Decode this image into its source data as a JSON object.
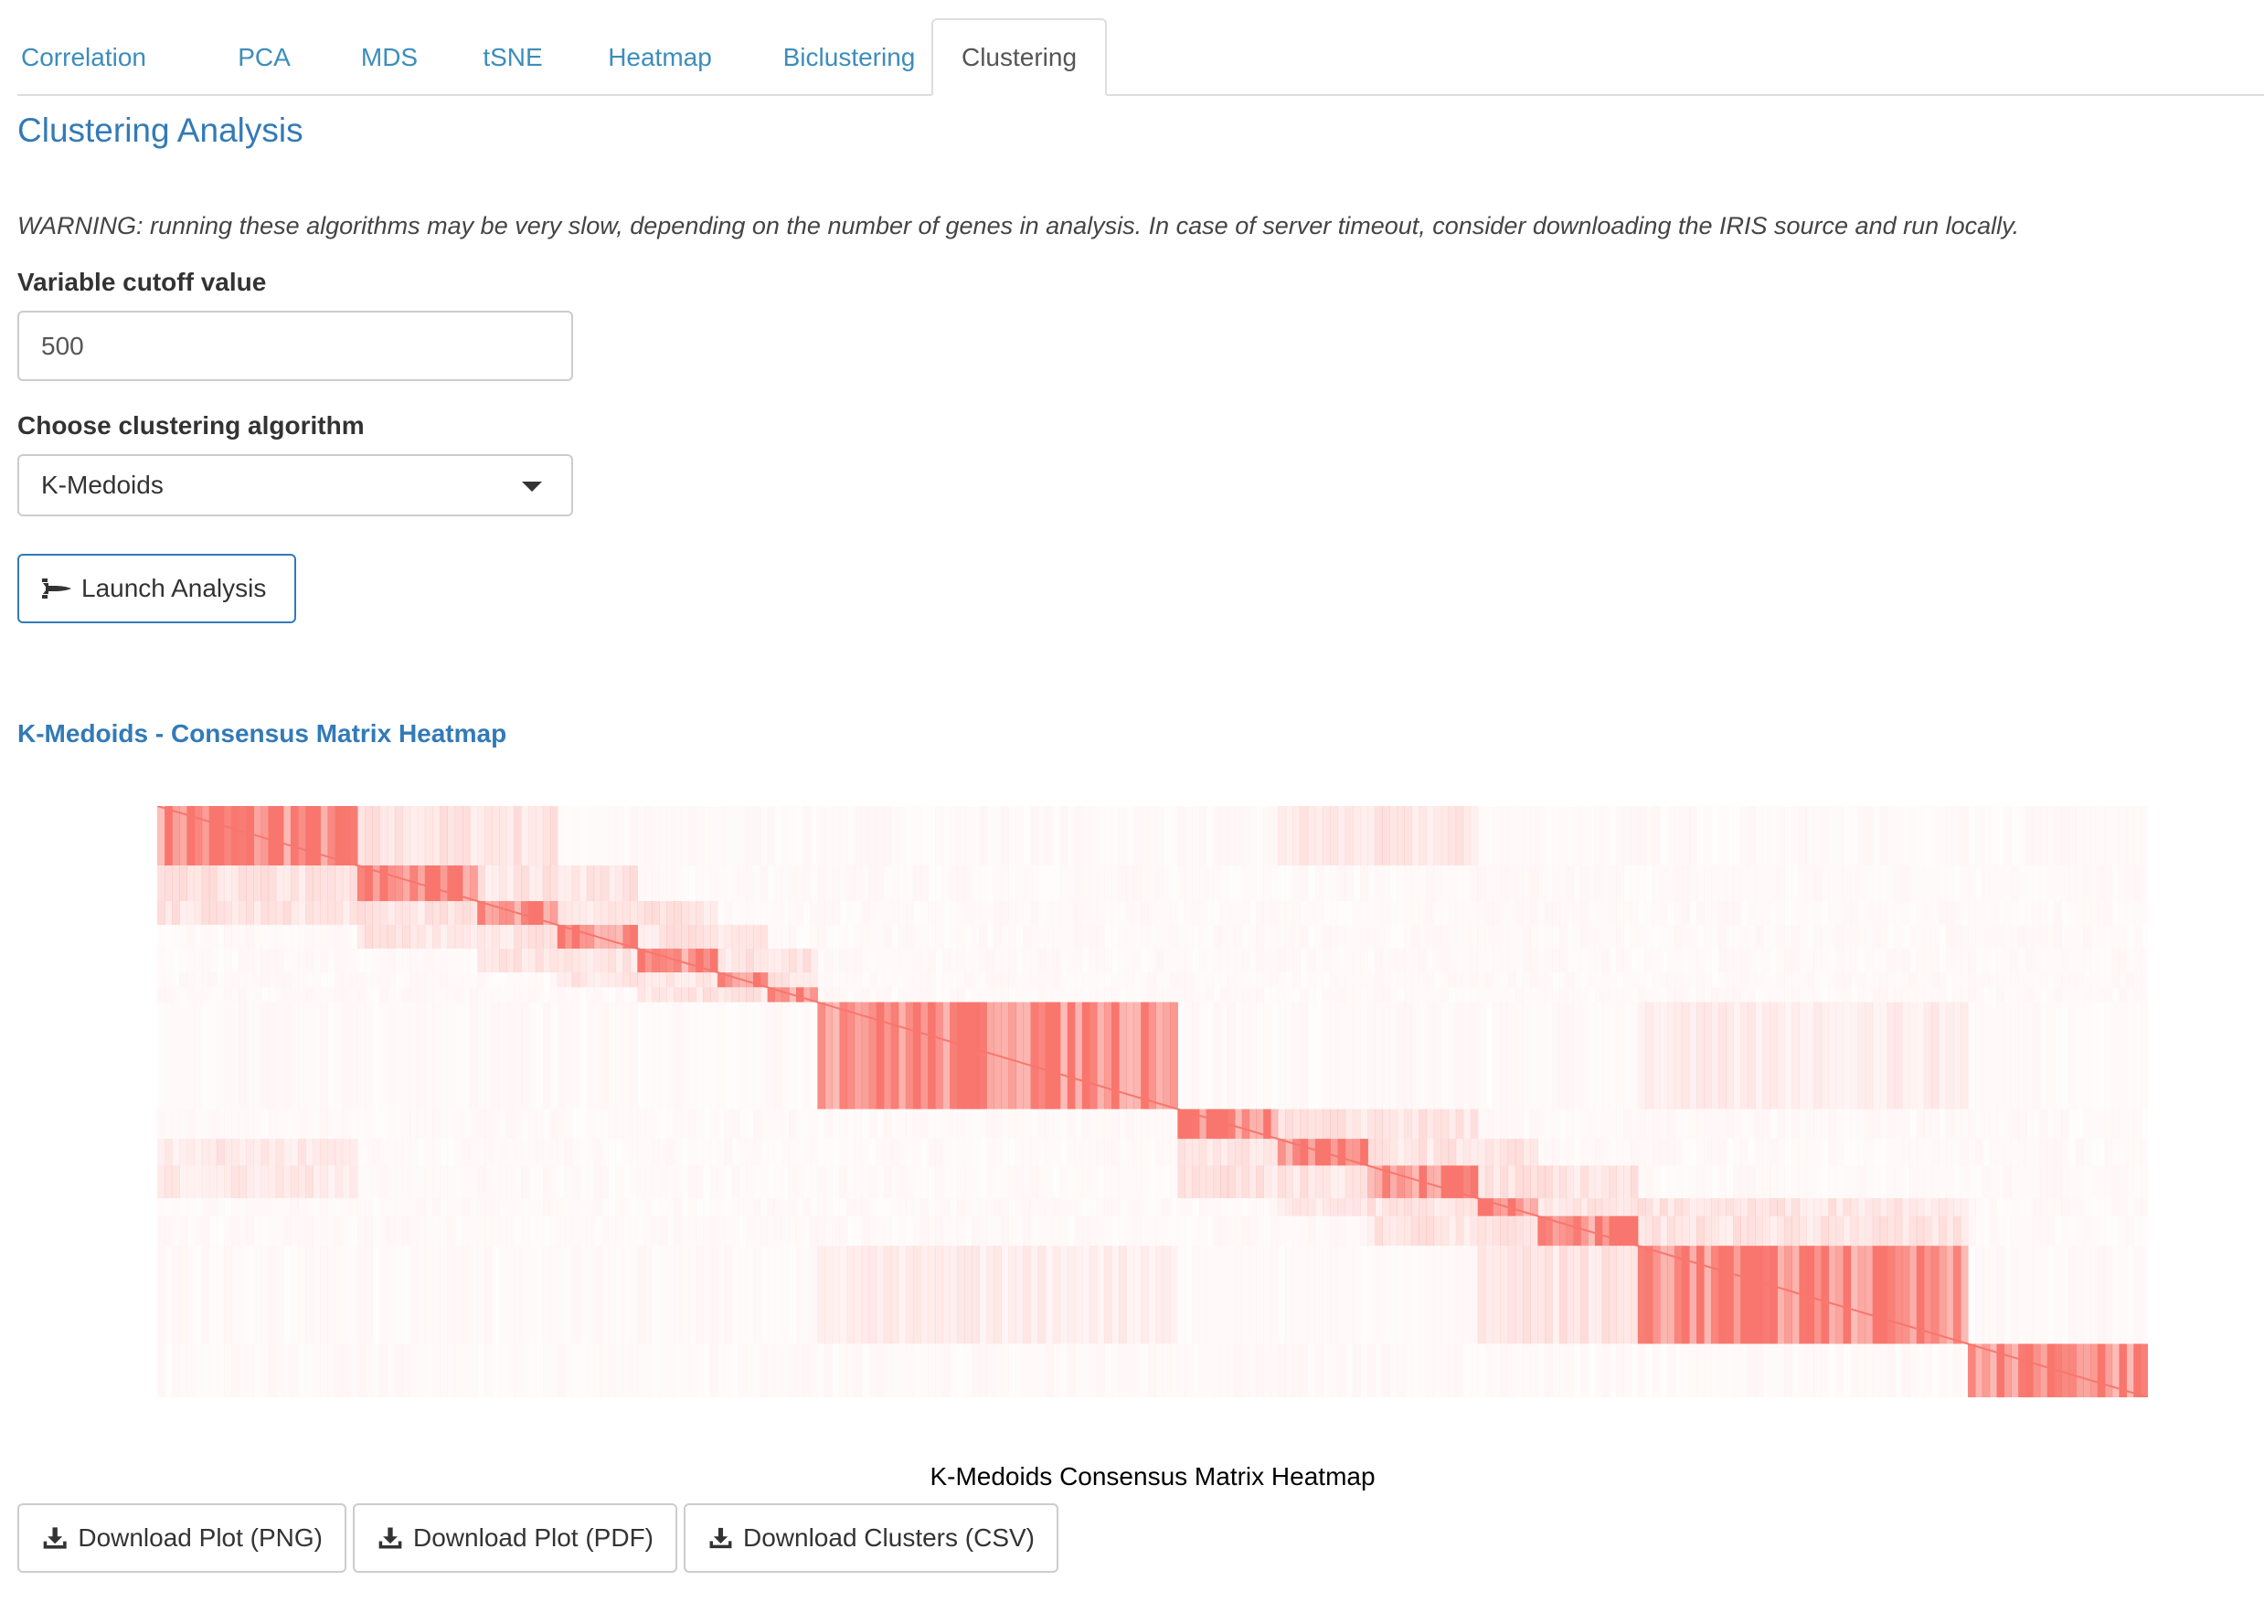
{
  "tabs": [
    {
      "label": "Correlation",
      "active": false
    },
    {
      "label": "PCA",
      "active": false
    },
    {
      "label": "MDS",
      "active": false
    },
    {
      "label": "tSNE",
      "active": false
    },
    {
      "label": "Heatmap",
      "active": false
    },
    {
      "label": "Biclustering",
      "active": false
    },
    {
      "label": "Clustering",
      "active": true
    }
  ],
  "page": {
    "title": "Clustering Analysis",
    "warning": "WARNING: running these algorithms may be very slow, depending on the number of genes in analysis. In case of server timeout, consider downloading the IRIS source and run locally."
  },
  "form": {
    "cutoff_label": "Variable cutoff value",
    "cutoff_value": "500",
    "algorithm_label": "Choose clustering algorithm",
    "algorithm_value": "K-Medoids",
    "launch_label": "Launch Analysis"
  },
  "result": {
    "section_title": "K-Medoids - Consensus Matrix Heatmap",
    "caption": "K-Medoids Consensus Matrix Heatmap"
  },
  "downloads": {
    "png_label": "Download Plot (PNG)",
    "pdf_label": "Download Plot (PDF)",
    "csv_label": "Download Clusters (CSV)"
  },
  "icons": {
    "launch": "space-shuttle-icon",
    "download": "download-icon"
  },
  "colors": {
    "accent": "#337ab7",
    "link": "#3c8dbc",
    "heat": "#f8766d"
  },
  "chart_data": {
    "type": "heatmap",
    "title": "K-Medoids Consensus Matrix Heatmap",
    "value_range": [
      0,
      1
    ],
    "high_color": "#f8766d",
    "low_color": "#ffffff",
    "clusters": [
      {
        "cluster": 1,
        "fraction_of_samples": 0.1
      },
      {
        "cluster": 2,
        "fraction_of_samples": 0.06
      },
      {
        "cluster": 3,
        "fraction_of_samples": 0.04
      },
      {
        "cluster": 4,
        "fraction_of_samples": 0.04
      },
      {
        "cluster": 5,
        "fraction_of_samples": 0.04
      },
      {
        "cluster": 6,
        "fraction_of_samples": 0.025
      },
      {
        "cluster": 7,
        "fraction_of_samples": 0.025
      },
      {
        "cluster": 8,
        "fraction_of_samples": 0.18
      },
      {
        "cluster": 9,
        "fraction_of_samples": 0.05
      },
      {
        "cluster": 10,
        "fraction_of_samples": 0.045
      },
      {
        "cluster": 11,
        "fraction_of_samples": 0.055
      },
      {
        "cluster": 12,
        "fraction_of_samples": 0.03
      },
      {
        "cluster": 13,
        "fraction_of_samples": 0.05
      },
      {
        "cluster": 14,
        "fraction_of_samples": 0.165
      },
      {
        "cluster": 15,
        "fraction_of_samples": 0.09
      }
    ]
  }
}
